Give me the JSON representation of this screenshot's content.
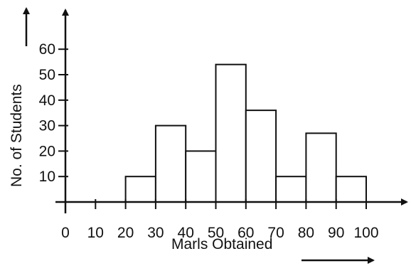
{
  "chart_data": {
    "type": "bar",
    "title": "",
    "xlabel": "Marls Obtained",
    "ylabel": "No. of Students",
    "x_ticks": [
      0,
      10,
      20,
      30,
      40,
      50,
      60,
      70,
      80,
      90,
      100
    ],
    "y_ticks": [
      10,
      20,
      30,
      40,
      50,
      60
    ],
    "xlim": [
      0,
      100
    ],
    "ylim": [
      0,
      60
    ],
    "grid": false,
    "bins": [
      {
        "start": 20,
        "end": 30,
        "value": 10
      },
      {
        "start": 30,
        "end": 40,
        "value": 30
      },
      {
        "start": 40,
        "end": 50,
        "value": 20
      },
      {
        "start": 50,
        "end": 60,
        "value": 54
      },
      {
        "start": 60,
        "end": 70,
        "value": 36
      },
      {
        "start": 70,
        "end": 80,
        "value": 10
      },
      {
        "start": 80,
        "end": 90,
        "value": 27
      },
      {
        "start": 90,
        "end": 100,
        "value": 10
      }
    ]
  }
}
